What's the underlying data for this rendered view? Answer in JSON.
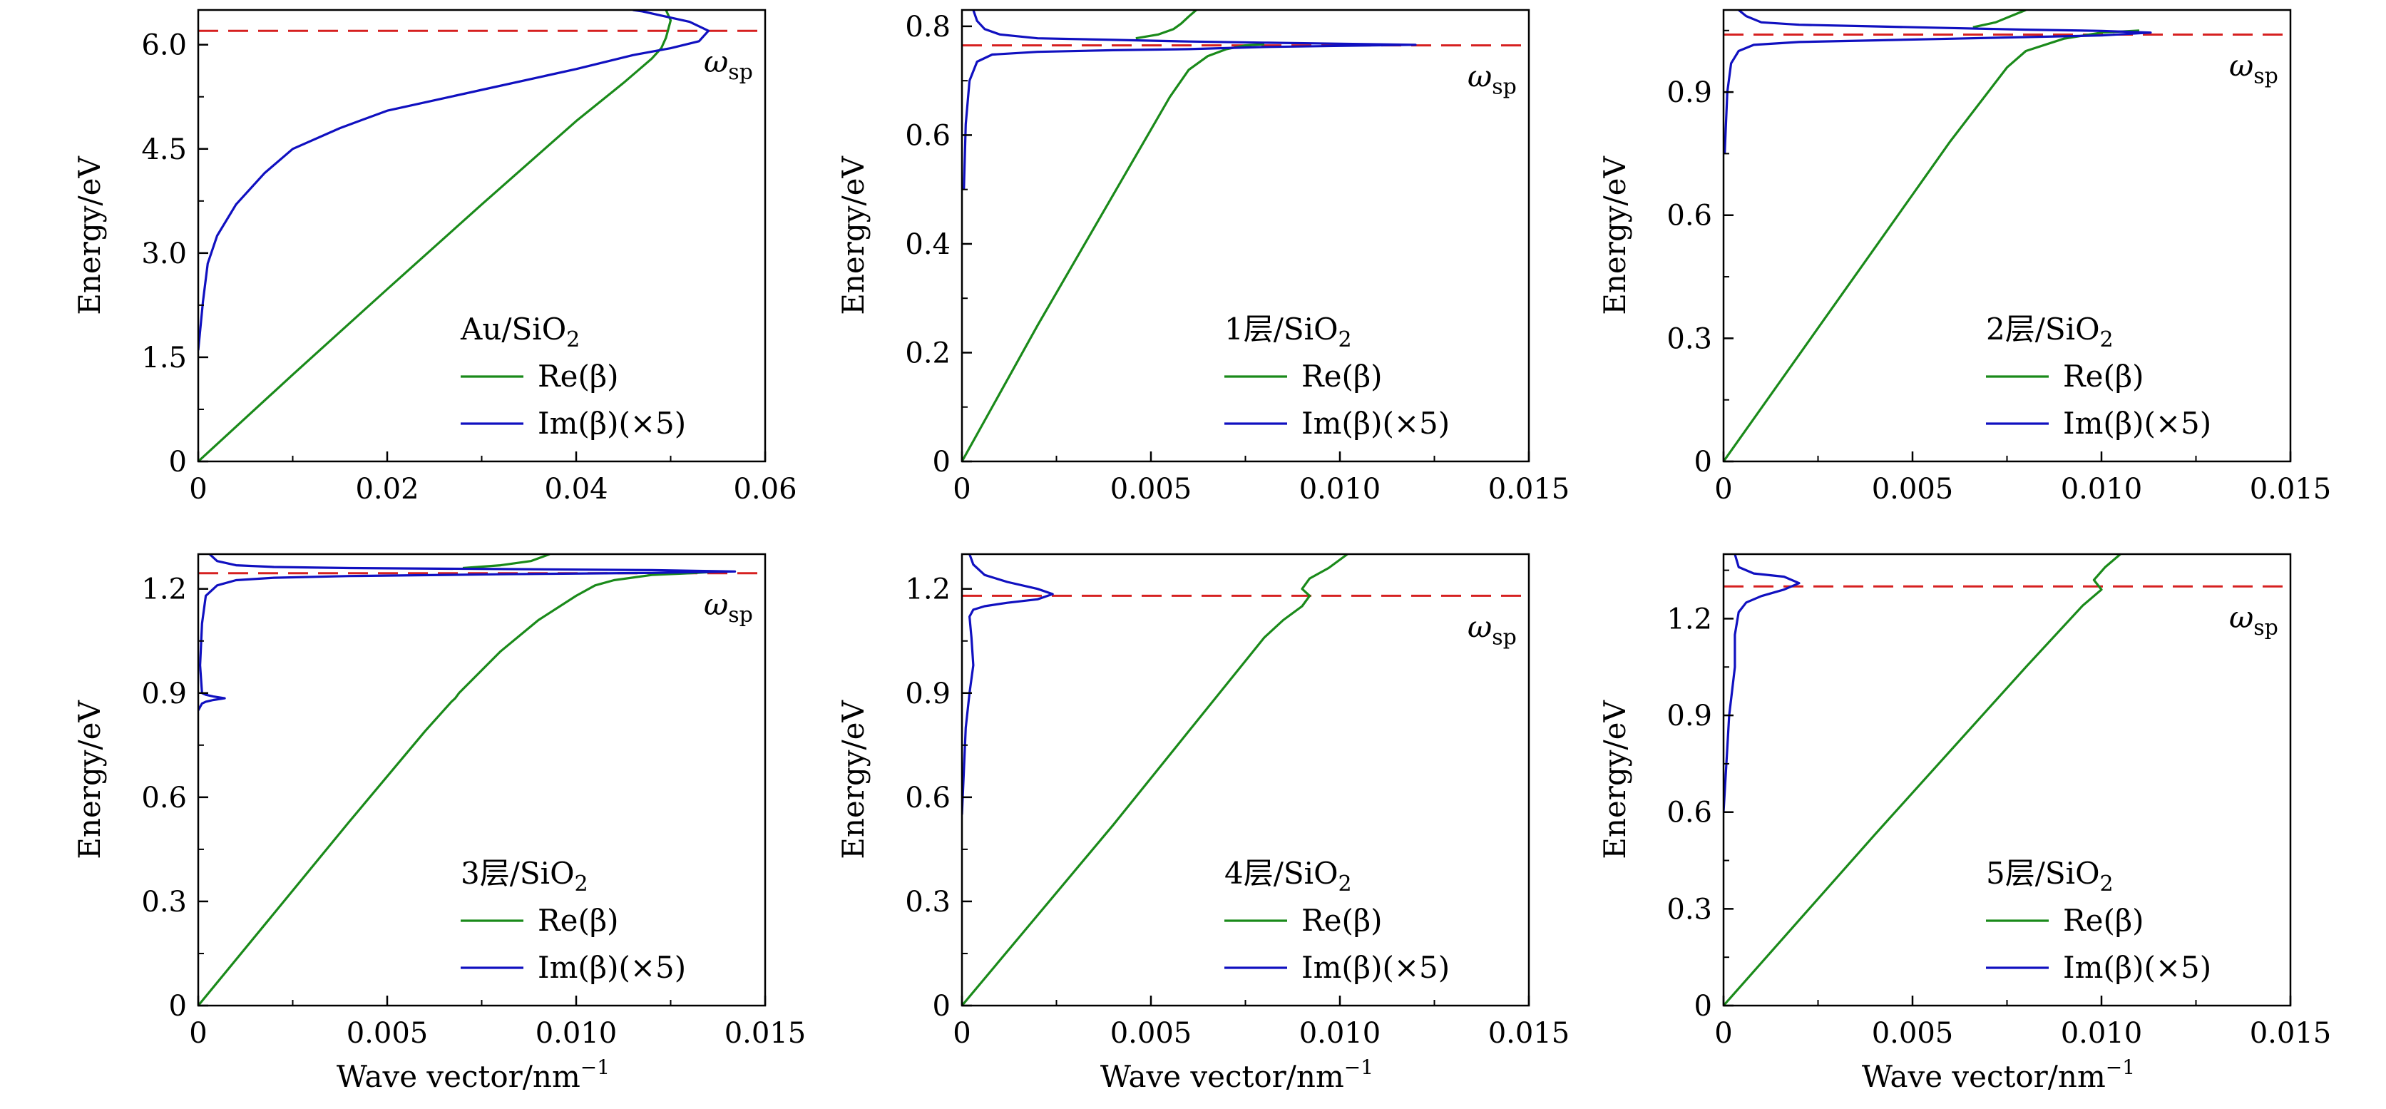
{
  "colors": {
    "re": "#1a8a1a",
    "im": "#1010c0",
    "ref": "#d62020",
    "axis": "#000000"
  },
  "chart_data": [
    {
      "type": "line",
      "ylabel": "Energy/eV",
      "xlabel": "",
      "xlim": [
        0,
        0.06
      ],
      "ylim": [
        0,
        6.5
      ],
      "xticks": [
        0,
        0.02,
        0.04,
        0.06
      ],
      "xtick_labels": [
        "0",
        "0.02",
        "0.04",
        "0.06"
      ],
      "yticks": [
        0,
        1.5,
        3.0,
        4.5,
        6.0
      ],
      "ytick_labels": [
        "0",
        "1.5",
        "3.0",
        "4.5",
        "6.0"
      ],
      "ref_line": {
        "y": 6.2,
        "label": "ω",
        "label_sub": "sp"
      },
      "legend": {
        "title": "Au/SiO",
        "title_sub": "2",
        "re_label": "Re(β)",
        "im_label": "Im(β)(×5)",
        "placement": "bottom-right"
      },
      "series": [
        {
          "key": "re",
          "x": [
            0,
            0.01,
            0.02,
            0.03,
            0.04,
            0.045,
            0.048,
            0.049,
            0.0495,
            0.05,
            0.0495
          ],
          "y": [
            0,
            1.25,
            2.48,
            3.7,
            4.9,
            5.45,
            5.8,
            5.95,
            6.1,
            6.35,
            6.5
          ]
        },
        {
          "key": "im",
          "x": [
            0,
            0.0005,
            0.001,
            0.002,
            0.004,
            0.007,
            0.01,
            0.015,
            0.02,
            0.03,
            0.04,
            0.046,
            0.05,
            0.053,
            0.054,
            0.052,
            0.049,
            0.047,
            0.046
          ],
          "y": [
            1.6,
            2.3,
            2.85,
            3.25,
            3.7,
            4.15,
            4.5,
            4.8,
            5.05,
            5.35,
            5.65,
            5.85,
            5.95,
            6.05,
            6.2,
            6.33,
            6.42,
            6.48,
            6.5
          ]
        }
      ]
    },
    {
      "type": "line",
      "ylabel": "Energy/eV",
      "xlabel": "",
      "xlim": [
        0,
        0.015
      ],
      "ylim": [
        0,
        0.83
      ],
      "xticks": [
        0,
        0.005,
        0.01,
        0.015
      ],
      "xtick_labels": [
        "0",
        "0.005",
        "0.010",
        "0.015"
      ],
      "yticks": [
        0,
        0.2,
        0.4,
        0.6,
        0.8
      ],
      "ytick_labels": [
        "0",
        "0.2",
        "0.4",
        "0.6",
        "0.8"
      ],
      "ref_line": {
        "y": 0.765,
        "label": "ω",
        "label_sub": "sp"
      },
      "legend": {
        "title": "1层/SiO",
        "title_sub": "2",
        "re_label": "Re(β)",
        "im_label": "Im(β)(×5)",
        "placement": "bottom-right"
      },
      "series": [
        {
          "key": "re",
          "x": [
            0,
            0.001,
            0.002,
            0.003,
            0.004,
            0.005,
            0.0055,
            0.006,
            0.0065,
            0.007,
            0.0075,
            0.008
          ],
          "y": [
            0,
            0.125,
            0.25,
            0.37,
            0.49,
            0.61,
            0.67,
            0.72,
            0.745,
            0.758,
            0.765,
            0.767
          ]
        },
        {
          "key": "re",
          "x": [
            0.0046,
            0.0052,
            0.0056,
            0.0058,
            0.006,
            0.0062
          ],
          "y": [
            0.778,
            0.785,
            0.795,
            0.805,
            0.818,
            0.83
          ]
        },
        {
          "key": "im",
          "x": [
            5e-05,
            0.0001,
            0.0002,
            0.0004,
            0.0008,
            0.002,
            0.004,
            0.006,
            0.007,
            0.008,
            0.01,
            0.012,
            0.01,
            0.008,
            0.006,
            0.004,
            0.002,
            0.001,
            0.0006,
            0.0004,
            0.0003
          ],
          "y": [
            0.5,
            0.62,
            0.7,
            0.735,
            0.748,
            0.753,
            0.756,
            0.758,
            0.76,
            0.762,
            0.764,
            0.766,
            0.768,
            0.77,
            0.772,
            0.775,
            0.778,
            0.785,
            0.795,
            0.81,
            0.83
          ]
        }
      ]
    },
    {
      "type": "line",
      "ylabel": "Energy/eV",
      "xlabel": "",
      "xlim": [
        0,
        0.015
      ],
      "ylim": [
        0,
        1.1
      ],
      "xticks": [
        0,
        0.005,
        0.01,
        0.015
      ],
      "xtick_labels": [
        "0",
        "0.005",
        "0.010",
        "0.015"
      ],
      "yticks": [
        0,
        0.3,
        0.6,
        0.9
      ],
      "ytick_labels": [
        "0",
        "0.3",
        "0.6",
        "0.9"
      ],
      "ref_line": {
        "y": 1.04,
        "label": "ω",
        "label_sub": "sp"
      },
      "legend": {
        "title": "2层/SiO",
        "title_sub": "2",
        "re_label": "Re(β)",
        "im_label": "Im(β)(×5)",
        "placement": "bottom-right"
      },
      "series": [
        {
          "key": "re",
          "x": [
            0,
            0.001,
            0.002,
            0.003,
            0.004,
            0.005,
            0.006,
            0.007,
            0.0075,
            0.008,
            0.009,
            0.01,
            0.011
          ],
          "y": [
            0,
            0.13,
            0.26,
            0.39,
            0.52,
            0.65,
            0.78,
            0.9,
            0.96,
            1.0,
            1.03,
            1.045,
            1.05
          ]
        },
        {
          "key": "re",
          "x": [
            0.0066,
            0.0072,
            0.0076,
            0.008
          ],
          "y": [
            1.058,
            1.07,
            1.085,
            1.1
          ]
        },
        {
          "key": "im",
          "x": [
            3e-05,
            0.0001,
            0.0002,
            0.0004,
            0.0008,
            0.002,
            0.004,
            0.006,
            0.008,
            0.01,
            0.0113,
            0.01,
            0.008,
            0.006,
            0.004,
            0.002,
            0.001,
            0.0006,
            0.0004
          ],
          "y": [
            0.75,
            0.9,
            0.97,
            1.0,
            1.015,
            1.022,
            1.026,
            1.03,
            1.034,
            1.038,
            1.045,
            1.049,
            1.052,
            1.056,
            1.06,
            1.064,
            1.07,
            1.085,
            1.1
          ]
        }
      ]
    },
    {
      "type": "line",
      "ylabel": "Energy/eV",
      "xlabel": "Wave vector/nm",
      "xlabel_sup": "−1",
      "xlim": [
        0,
        0.015
      ],
      "ylim": [
        0,
        1.3
      ],
      "xticks": [
        0,
        0.005,
        0.01,
        0.015
      ],
      "xtick_labels": [
        "0",
        "0.005",
        "0.010",
        "0.015"
      ],
      "yticks": [
        0,
        0.3,
        0.6,
        0.9,
        1.2
      ],
      "ytick_labels": [
        "0",
        "0.3",
        "0.6",
        "0.9",
        "1.2"
      ],
      "ref_line": {
        "y": 1.245,
        "label": "ω",
        "label_sub": "sp"
      },
      "legend": {
        "title": "3层/SiO",
        "title_sub": "2",
        "re_label": "Re(β)",
        "im_label": "Im(β)(×5)",
        "placement": "bottom-right"
      },
      "series": [
        {
          "key": "re",
          "x": [
            0,
            0.002,
            0.004,
            0.006,
            0.0067,
            0.0068,
            0.0069,
            0.008,
            0.009,
            0.01,
            0.0105,
            0.011,
            0.012,
            0.013,
            0.0135
          ],
          "y": [
            0,
            0.265,
            0.53,
            0.79,
            0.875,
            0.885,
            0.9,
            1.02,
            1.11,
            1.18,
            1.21,
            1.225,
            1.24,
            1.245,
            1.248
          ]
        },
        {
          "key": "re",
          "x": [
            0.007,
            0.008,
            0.0088,
            0.0093
          ],
          "y": [
            1.26,
            1.268,
            1.28,
            1.3
          ]
        },
        {
          "key": "im",
          "x": [
            0,
            5e-05,
            0.0001,
            0.0002,
            0.0004,
            0.0007,
            0.0004,
            0.0002,
            0.0001,
            5e-05,
            0.0001,
            0.0002,
            0.0005,
            0.001,
            0.002,
            0.004,
            0.008,
            0.012,
            0.0142,
            0.012,
            0.008,
            0.004,
            0.002,
            0.001,
            0.0005,
            0.0003
          ],
          "y": [
            0.85,
            0.86,
            0.87,
            0.875,
            0.88,
            0.885,
            0.89,
            0.895,
            0.9,
            0.98,
            1.1,
            1.18,
            1.21,
            1.225,
            1.232,
            1.237,
            1.242,
            1.246,
            1.25,
            1.254,
            1.257,
            1.26,
            1.263,
            1.268,
            1.28,
            1.3
          ]
        }
      ]
    },
    {
      "type": "line",
      "ylabel": "Energy/eV",
      "xlabel": "Wave vector/nm",
      "xlabel_sup": "−1",
      "xlim": [
        0,
        0.015
      ],
      "ylim": [
        0,
        1.3
      ],
      "xticks": [
        0,
        0.005,
        0.01,
        0.015
      ],
      "xtick_labels": [
        "0",
        "0.005",
        "0.010",
        "0.015"
      ],
      "yticks": [
        0,
        0.3,
        0.6,
        0.9,
        1.2
      ],
      "ytick_labels": [
        "0",
        "0.3",
        "0.6",
        "0.9",
        "1.2"
      ],
      "ref_line": {
        "y": 1.18,
        "label": "ω",
        "label_sub": "sp"
      },
      "legend": {
        "title": "4层/SiO",
        "title_sub": "2",
        "re_label": "Re(β)",
        "im_label": "Im(β)(×5)",
        "placement": "bottom-right"
      },
      "series": [
        {
          "key": "re",
          "x": [
            0,
            0.002,
            0.004,
            0.006,
            0.008,
            0.0085,
            0.009,
            0.0092,
            0.009,
            0.0092,
            0.0097,
            0.0102
          ],
          "y": [
            0,
            0.26,
            0.52,
            0.79,
            1.06,
            1.11,
            1.15,
            1.18,
            1.2,
            1.23,
            1.26,
            1.3
          ]
        },
        {
          "key": "im",
          "x": [
            0,
            0.0001,
            0.0002,
            0.0003,
            0.00025,
            0.0002,
            0.0003,
            0.0006,
            0.0012,
            0.002,
            0.0024,
            0.002,
            0.0012,
            0.0006,
            0.0003,
            0.0002
          ],
          "y": [
            0.55,
            0.8,
            0.9,
            0.98,
            1.06,
            1.12,
            1.14,
            1.15,
            1.16,
            1.17,
            1.185,
            1.2,
            1.22,
            1.24,
            1.27,
            1.3
          ]
        }
      ]
    },
    {
      "type": "line",
      "ylabel": "Energy/eV",
      "xlabel": "Wave vector/nm",
      "xlabel_sup": "−1",
      "xlim": [
        0,
        0.015
      ],
      "ylim": [
        0,
        1.4
      ],
      "xticks": [
        0,
        0.005,
        0.01,
        0.015
      ],
      "xtick_labels": [
        "0",
        "0.005",
        "0.010",
        "0.015"
      ],
      "yticks": [
        0,
        0.3,
        0.6,
        0.9,
        1.2
      ],
      "ytick_labels": [
        "0",
        "0.3",
        "0.6",
        "0.9",
        "1.2"
      ],
      "ref_line": {
        "y": 1.3,
        "label": "ω",
        "label_sub": "sp"
      },
      "legend": {
        "title": "5层/SiO",
        "title_sub": "2",
        "re_label": "Re(β)",
        "im_label": "Im(β)(×5)",
        "placement": "bottom-right"
      },
      "series": [
        {
          "key": "re",
          "x": [
            0,
            0.002,
            0.004,
            0.006,
            0.008,
            0.0095,
            0.01,
            0.0098,
            0.0101,
            0.0105
          ],
          "y": [
            0,
            0.265,
            0.53,
            0.79,
            1.05,
            1.24,
            1.29,
            1.32,
            1.36,
            1.4
          ]
        },
        {
          "key": "im",
          "x": [
            0,
            0.0001,
            0.00015,
            0.0002,
            0.0003,
            0.0003,
            0.0004,
            0.0006,
            0.001,
            0.0016,
            0.002,
            0.0016,
            0.0008,
            0.0004,
            0.0003
          ],
          "y": [
            0.6,
            0.8,
            0.9,
            0.95,
            1.05,
            1.15,
            1.22,
            1.25,
            1.27,
            1.29,
            1.31,
            1.33,
            1.34,
            1.36,
            1.4
          ]
        }
      ]
    }
  ]
}
